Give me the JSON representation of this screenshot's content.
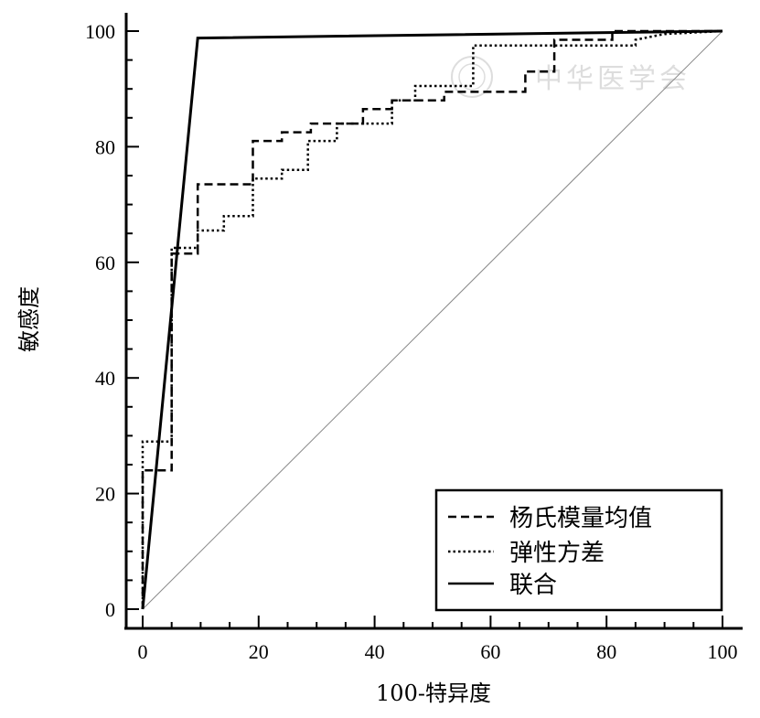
{
  "chart_data": {
    "type": "line",
    "title": "",
    "xlabel": "100-特异度",
    "ylabel": "敏感度",
    "xlim": [
      0,
      100
    ],
    "ylim": [
      0,
      100
    ],
    "xticks": [
      "0",
      "20",
      "40",
      "60",
      "80",
      "100"
    ],
    "yticks": [
      "0",
      "20",
      "40",
      "60",
      "80",
      "100"
    ],
    "grid": false,
    "legend_position": "bottom-right",
    "reference_line": {
      "x": [
        0,
        100
      ],
      "y": [
        0,
        100
      ]
    },
    "series": [
      {
        "name": "杨氏模量均值",
        "style": "dashed",
        "x": [
          0,
          0,
          5,
          5,
          9.5,
          9.5,
          19,
          19,
          24,
          24,
          29,
          29,
          38,
          38,
          43,
          43,
          52,
          52,
          66,
          66,
          71,
          71,
          81,
          81,
          100
        ],
        "y": [
          0,
          24,
          24,
          61.5,
          61.5,
          73.5,
          73.5,
          81,
          81,
          82.5,
          82.5,
          84,
          84,
          86.5,
          86.5,
          88,
          88,
          89.5,
          89.5,
          93,
          93,
          98.5,
          98.5,
          100,
          100
        ]
      },
      {
        "name": "弹性方差",
        "style": "dotted",
        "x": [
          0,
          0,
          5,
          5,
          9.5,
          9.5,
          14,
          14,
          19,
          19,
          24,
          24,
          28.5,
          28.5,
          33.5,
          33.5,
          43,
          43,
          47,
          47,
          57,
          57,
          85,
          85,
          90,
          100
        ],
        "y": [
          0,
          29,
          29,
          62.5,
          62.5,
          65.5,
          65.5,
          68,
          68,
          74.5,
          74.5,
          76,
          76,
          81,
          81,
          84,
          84,
          88,
          88,
          90.5,
          90.5,
          97.5,
          97.5,
          98.5,
          99.5,
          100
        ]
      },
      {
        "name": "联合",
        "style": "solid",
        "x": [
          0,
          9.5,
          100
        ],
        "y": [
          0,
          98.8,
          100
        ]
      }
    ]
  },
  "watermark": "中华医学会"
}
